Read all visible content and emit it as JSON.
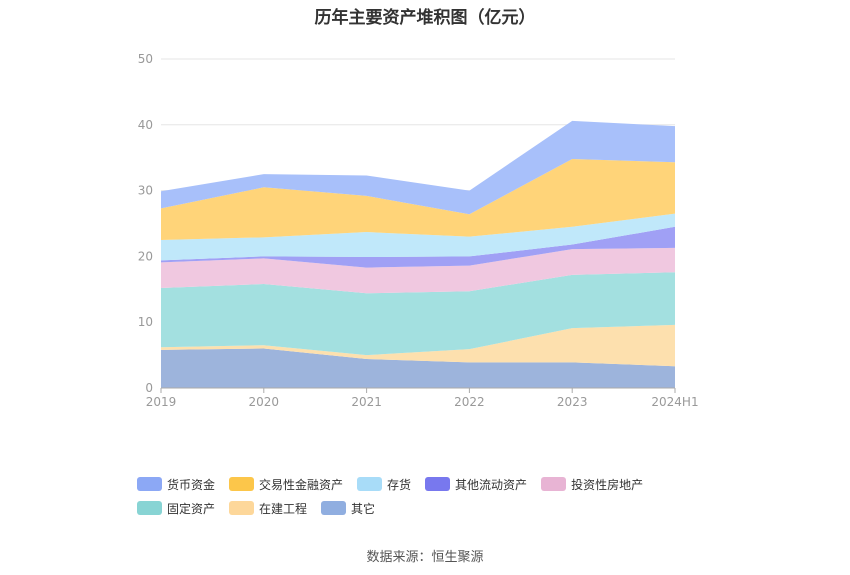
{
  "chart_data": {
    "type": "area",
    "stacked": true,
    "title": "历年主要资产堆积图（亿元）",
    "categories": [
      "2019",
      "2020",
      "2021",
      "2022",
      "2023",
      "2024H1"
    ],
    "ylim": [
      0,
      50
    ],
    "yticks": [
      0,
      10,
      20,
      30,
      40,
      50
    ],
    "grid": true,
    "legend_position": "bottom",
    "series": [
      {
        "name": "其它",
        "color": "#9db4dc",
        "values": [
          5.8,
          6.0,
          4.4,
          3.9,
          3.9,
          3.3
        ]
      },
      {
        "name": "在建工程",
        "color": "#fde0ae",
        "values": [
          0.4,
          0.5,
          0.6,
          2.0,
          5.2,
          6.3
        ]
      },
      {
        "name": "固定资产",
        "color": "#a3e0e0",
        "values": [
          9.0,
          9.3,
          9.4,
          8.8,
          8.1,
          8.0
        ]
      },
      {
        "name": "投资性房地产",
        "color": "#f0c8e0",
        "values": [
          3.9,
          3.9,
          3.9,
          3.9,
          3.9,
          3.7
        ]
      },
      {
        "name": "其他流动资产",
        "color": "#a0a0f5",
        "values": [
          0.3,
          0.3,
          1.6,
          1.4,
          0.7,
          3.2
        ]
      },
      {
        "name": "存货",
        "color": "#c0e8fa",
        "values": [
          3.1,
          2.9,
          3.8,
          3.0,
          2.7,
          2.0
        ]
      },
      {
        "name": "交易性金融资产",
        "color": "#ffd479",
        "values": [
          4.8,
          7.6,
          5.5,
          3.4,
          10.3,
          7.8
        ]
      },
      {
        "name": "货币资金",
        "color": "#a8c0fa",
        "values": [
          2.6,
          2.0,
          3.1,
          3.6,
          5.8,
          5.5
        ]
      }
    ],
    "legend_order": [
      "货币资金",
      "交易性金融资产",
      "存货",
      "其他流动资产",
      "投资性房地产",
      "固定资产",
      "在建工程",
      "其它"
    ],
    "legend_colors": {
      "货币资金": "#8ca8f5",
      "交易性金融资产": "#fcc64a",
      "存货": "#a8dcf8",
      "其他流动资产": "#7878ee",
      "投资性房地产": "#e8b4d4",
      "固定资产": "#88d4d4",
      "在建工程": "#fdd79a",
      "其它": "#90aee0"
    }
  },
  "source_text": "数据来源：恒生聚源"
}
